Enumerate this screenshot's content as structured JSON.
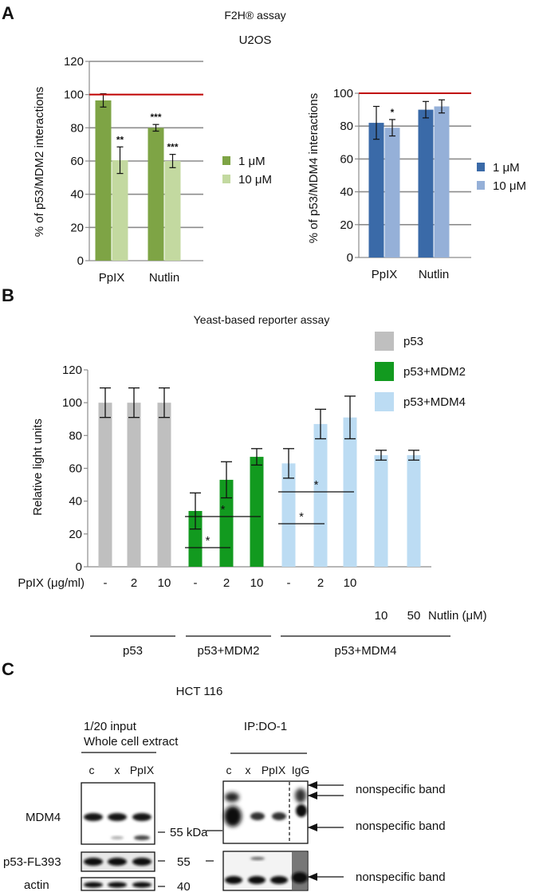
{
  "panels": {
    "a": "A",
    "b": "B",
    "c": "C"
  },
  "colors": {
    "mdm2_1uM": "#7ea445",
    "mdm2_10uM": "#c3d9a0",
    "mdm4_1uM": "#3a6aa8",
    "mdm4_10uM": "#95b0d8",
    "p53": "#bfbfbf",
    "p53_mdm2": "#129a1f",
    "p53_mdm4": "#bcdcf3",
    "reference_line": "#c00000"
  },
  "chart_data": [
    {
      "id": "f2h_mdm2",
      "type": "bar",
      "title": "F2H® assay",
      "subtitle": "U2OS",
      "ylabel": "% of p53/MDM2 interactions",
      "xlabel": "",
      "ylim": [
        0,
        120
      ],
      "yticks": [
        "0",
        "20",
        "40",
        "60",
        "80",
        "100",
        "120"
      ],
      "categories": [
        "PpIX",
        "Nutlin"
      ],
      "series": [
        {
          "name": "1 μM",
          "values": [
            96.5,
            80
          ],
          "errors": [
            4,
            2
          ],
          "sig": [
            "",
            "***"
          ]
        },
        {
          "name": "10 μM",
          "values": [
            60.5,
            60
          ],
          "errors": [
            8,
            4
          ],
          "sig": [
            "**",
            "***"
          ]
        }
      ],
      "reference_line": 100,
      "grid": true,
      "legend": "right"
    },
    {
      "id": "f2h_mdm4",
      "type": "bar",
      "title": "",
      "ylabel": "% of p53/MDM4 interactions",
      "xlabel": "",
      "ylim": [
        0,
        100
      ],
      "yticks": [
        "0",
        "20",
        "40",
        "60",
        "80",
        "100"
      ],
      "categories": [
        "PpIX",
        "Nutlin"
      ],
      "series": [
        {
          "name": "1 μM",
          "values": [
            82,
            90
          ],
          "errors": [
            10,
            5
          ],
          "sig": [
            "",
            ""
          ]
        },
        {
          "name": "10 μM",
          "values": [
            79,
            92
          ],
          "errors": [
            5,
            4
          ],
          "sig": [
            "*",
            ""
          ]
        }
      ],
      "reference_line": 100,
      "grid": true,
      "legend": "right"
    },
    {
      "id": "yeast",
      "type": "bar",
      "title": "Yeast-based reporter assay",
      "ylabel": "Relative light units",
      "xlabel": "",
      "ylim": [
        0,
        120
      ],
      "yticks": [
        "0",
        "20",
        "40",
        "60",
        "80",
        "100",
        "120"
      ],
      "values": [
        100,
        100,
        100,
        34,
        53,
        67,
        63,
        87,
        91,
        68,
        68
      ],
      "errors": [
        9,
        9,
        9,
        11,
        11,
        5,
        9,
        9,
        13,
        3,
        3
      ],
      "groups": [
        0,
        0,
        0,
        1,
        1,
        1,
        2,
        2,
        2,
        2,
        2
      ],
      "legend_labels": [
        "p53",
        "p53+MDM2",
        "p53+MDM4"
      ],
      "legend": "top-right",
      "ppix_label": "PpIX (μg/ml)",
      "ppix": [
        "-",
        "2",
        "10",
        "-",
        "2",
        "10",
        "-",
        "2",
        "10",
        "",
        ""
      ],
      "nutlin_label": "Nutlin (μM)",
      "nutlin": [
        "",
        "",
        "",
        "",
        "",
        "",
        "",
        "",
        "",
        "10",
        "50"
      ],
      "group_labels": [
        "p53",
        "p53+MDM2",
        "p53+MDM4"
      ],
      "significance": [
        {
          "from": 3,
          "to": 4,
          "label": "*"
        },
        {
          "from": 3,
          "to": 5,
          "label": "*"
        },
        {
          "from": 6,
          "to": 7,
          "label": "*"
        },
        {
          "from": 6,
          "to": 8,
          "label": "*"
        }
      ],
      "grid": true
    }
  ],
  "blot": {
    "title": "HCT 116",
    "input_title_1": "1/20 input",
    "input_title_2": "Whole cell extract",
    "input_lanes": [
      "c",
      "x",
      "PpIX"
    ],
    "ip_title": "IP:DO-1",
    "ip_lanes": [
      "c",
      "x",
      "PpIX",
      "IgG"
    ],
    "row_labels": [
      "MDM4",
      "p53-FL393",
      "actin"
    ],
    "markers": [
      "55 kDa",
      "55",
      "40"
    ],
    "nonspecific": [
      "nonspecific band",
      "nonspecific band",
      "nonspecific band"
    ]
  }
}
